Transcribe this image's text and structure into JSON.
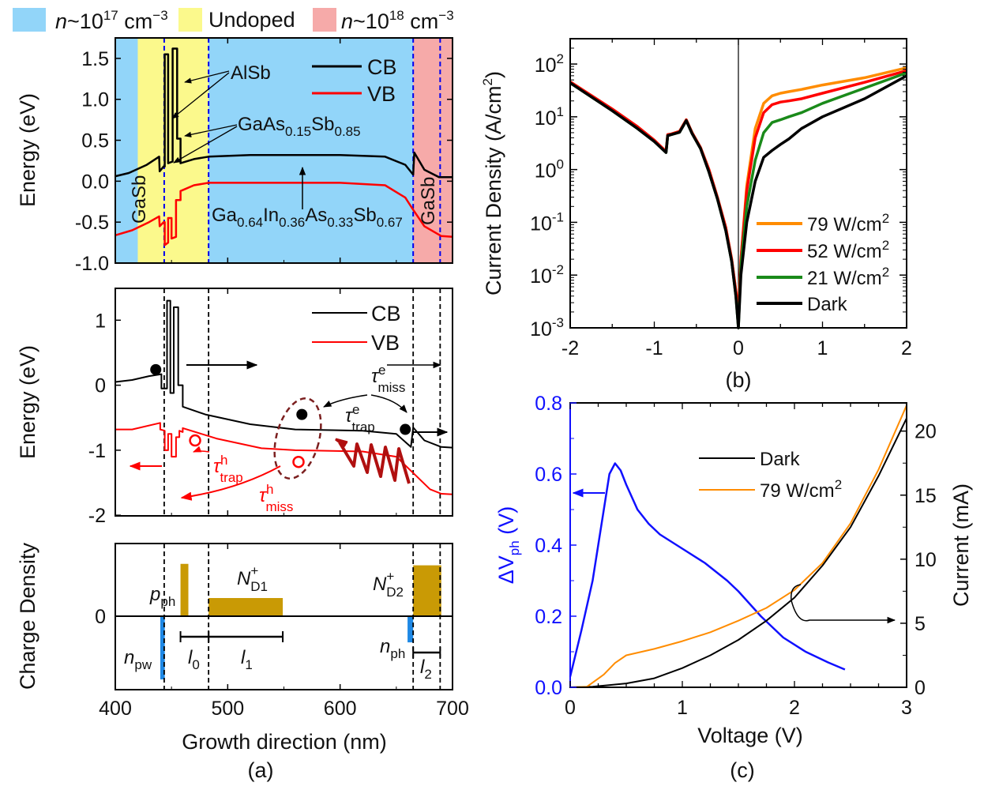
{
  "colors": {
    "blue_region": "#92d5f9",
    "yellow_region": "#fbf98c",
    "pink_region": "#f6aaa9",
    "cb": "#000000",
    "vb": "#ff0000",
    "donor": "#c99a05",
    "electron_charge": "#1e88e5",
    "dv_ph": "#1010ff",
    "orange": "#ff8c00",
    "green": "#1a8a1a",
    "ellipse": "#7b1f1f",
    "zigzag": "#b01010"
  },
  "top_legend": [
    {
      "n": "n",
      "pre": "~10",
      "exp": "17",
      "unit": " cm",
      "unit_exp": "−3"
    },
    {
      "label": "Undoped"
    },
    {
      "n": "n",
      "pre": "~10",
      "exp": "18",
      "unit": " cm",
      "unit_exp": "−3"
    }
  ],
  "panel_a": {
    "caption": "(a)",
    "xlabel": "Growth direction (nm)",
    "x_ticks": [
      "400",
      "500",
      "600",
      "700"
    ],
    "band_top": {
      "ylabel": "Energy (eV)",
      "y_ticks": [
        "1.5",
        "1.0",
        "0.5",
        "0.0",
        "-0.5",
        "-1.0"
      ],
      "legend": [
        "CB",
        "VB"
      ],
      "ann_alsb": "AlSb",
      "ann_gaassb": {
        "a": "GaAs",
        "s1": "0.15",
        "b": "Sb",
        "s2": "0.85"
      },
      "ann_gasb": "GaSb",
      "ann_quat": {
        "a": "Ga",
        "s1": "0.64",
        "b": "In",
        "s2": "0.36",
        "c": "As",
        "s3": "0.33",
        "d": "Sb",
        "s4": "0.67"
      }
    },
    "band_mid": {
      "ylabel": "Energy (eV)",
      "y_ticks": [
        "1",
        "0",
        "-1",
        "-2"
      ],
      "legend": [
        "CB",
        "VB"
      ],
      "tau": "τ",
      "tau_miss_e": {
        "sup": "e",
        "sub": "miss"
      },
      "tau_trap_e": {
        "sup": "e",
        "sub": "trap"
      },
      "tau_trap_h": {
        "sup": "h",
        "sub": "trap"
      },
      "tau_miss_h": {
        "sup": "h",
        "sub": "miss"
      }
    },
    "charge": {
      "ylabel": "Charge Density",
      "y_ticks": [
        "0"
      ],
      "p_ph": {
        "a": "p",
        "s": "ph"
      },
      "nd1": {
        "a": "N",
        "sup": "+",
        "s": "D1"
      },
      "nd2": {
        "a": "N",
        "sup": "+",
        "s": "D2"
      },
      "n_pw": {
        "a": "n",
        "s": "pw"
      },
      "n_ph": {
        "a": "n",
        "s": "ph"
      },
      "l0": {
        "a": "l",
        "s": "0"
      },
      "l1": {
        "a": "l",
        "s": "1"
      },
      "l2": {
        "a": "l",
        "s": "2"
      }
    }
  },
  "panel_b": {
    "caption": "(b)",
    "xlabel": "",
    "ylabel": "Current Density (A/cm",
    "ylabel_exp": "2",
    "ylabel_end": ")",
    "x_ticks": [
      "-2",
      "-1",
      "0",
      "1",
      "2"
    ],
    "y_ticks": [
      {
        "b": "10",
        "e": "2"
      },
      {
        "b": "10",
        "e": "1"
      },
      {
        "b": "10",
        "e": "0"
      },
      {
        "b": "10",
        "e": "-1"
      },
      {
        "b": "10",
        "e": "-2"
      },
      {
        "b": "10",
        "e": "-3"
      }
    ],
    "legend": [
      {
        "t": "79 W/cm",
        "e": "2"
      },
      {
        "t": "52 W/cm",
        "e": "2"
      },
      {
        "t": "21 W/cm",
        "e": "2"
      },
      {
        "t": "Dark",
        "e": ""
      }
    ]
  },
  "panel_c": {
    "caption": "(c)",
    "xlabel": "Voltage (V)",
    "ylabel_left": {
      "a": "ΔV",
      "s": "ph",
      "b": " (V)"
    },
    "ylabel_right": "Current (mA)",
    "x_ticks": [
      "0",
      "1",
      "2",
      "3"
    ],
    "y_left_ticks": [
      "0.0",
      "0.2",
      "0.4",
      "0.6",
      "0.8"
    ],
    "y_right_ticks": [
      "0",
      "5",
      "10",
      "15",
      "20"
    ],
    "legend": [
      {
        "t": "Dark",
        "e": ""
      },
      {
        "t": "79 W/cm",
        "e": "2"
      }
    ]
  },
  "chart_data": [
    {
      "type": "line",
      "panel": "a-top",
      "xlabel": "Growth direction (nm)",
      "ylabel": "Energy (eV)",
      "xlim": [
        400,
        700
      ],
      "ylim": [
        -1.0,
        1.75
      ],
      "regions": [
        {
          "from": 400,
          "to": 420,
          "doping": "n~1e17"
        },
        {
          "from": 420,
          "to": 483,
          "doping": "Undoped"
        },
        {
          "from": 483,
          "to": 665,
          "doping": "n~1e17"
        },
        {
          "from": 665,
          "to": 700,
          "doping": "n~1e18"
        }
      ],
      "dashed_lines": [
        443.5,
        483,
        665,
        689
      ],
      "series": [
        {
          "name": "CB",
          "points": [
            [
              400,
              0.06
            ],
            [
              412,
              0.1
            ],
            [
              428,
              0.2
            ],
            [
              439,
              0.3
            ],
            [
              439.5,
              0.12
            ],
            [
              443,
              0.18
            ],
            [
              444,
              0.18
            ],
            [
              444,
              1.55
            ],
            [
              447,
              1.55
            ],
            [
              447,
              0.22
            ],
            [
              451,
              0.24
            ],
            [
              451,
              1.62
            ],
            [
              455,
              1.62
            ],
            [
              455,
              0.52
            ],
            [
              458,
              0.52
            ],
            [
              458,
              0.22
            ],
            [
              470,
              0.27
            ],
            [
              483,
              0.3
            ],
            [
              520,
              0.32
            ],
            [
              600,
              0.32
            ],
            [
              640,
              0.3
            ],
            [
              658,
              0.2
            ],
            [
              665,
              0.08
            ],
            [
              666,
              0.35
            ],
            [
              675,
              0.14
            ],
            [
              688,
              0.05
            ],
            [
              700,
              0.05
            ]
          ]
        },
        {
          "name": "VB",
          "points": [
            [
              400,
              -0.66
            ],
            [
              415,
              -0.6
            ],
            [
              430,
              -0.5
            ],
            [
              439,
              -0.43
            ],
            [
              439.5,
              -0.55
            ],
            [
              443,
              -0.5
            ],
            [
              444,
              -0.5
            ],
            [
              444,
              -0.78
            ],
            [
              447,
              -0.75
            ],
            [
              447,
              -0.45
            ],
            [
              450,
              -0.45
            ],
            [
              450,
              -0.7
            ],
            [
              454,
              -0.68
            ],
            [
              454,
              -0.23
            ],
            [
              458,
              -0.23
            ],
            [
              458,
              -0.12
            ],
            [
              470,
              -0.05
            ],
            [
              483,
              -0.02
            ],
            [
              600,
              -0.02
            ],
            [
              640,
              -0.05
            ],
            [
              658,
              -0.2
            ],
            [
              665,
              -0.35
            ],
            [
              675,
              -0.55
            ],
            [
              690,
              -0.67
            ],
            [
              700,
              -0.68
            ]
          ]
        }
      ]
    },
    {
      "type": "line",
      "panel": "a-middle",
      "ylabel": "Energy (eV)",
      "xlim": [
        400,
        700
      ],
      "ylim": [
        -2.01,
        1.49
      ],
      "dashed_lines": [
        443.5,
        483,
        665,
        689
      ],
      "series": [
        {
          "name": "CB",
          "points": [
            [
              400,
              0.05
            ],
            [
              415,
              0.08
            ],
            [
              430,
              0.14
            ],
            [
              441,
              0.17
            ],
            [
              441,
              -0.05
            ],
            [
              446,
              -0.05
            ],
            [
              446,
              1.3
            ],
            [
              449,
              1.3
            ],
            [
              449,
              -0.12
            ],
            [
              452,
              -0.12
            ],
            [
              452,
              1.2
            ],
            [
              456,
              1.2
            ],
            [
              456,
              0.0
            ],
            [
              460,
              0.0
            ],
            [
              460,
              -0.33
            ],
            [
              480,
              -0.45
            ],
            [
              520,
              -0.6
            ],
            [
              560,
              -0.68
            ],
            [
              620,
              -0.7
            ],
            [
              650,
              -0.75
            ],
            [
              663,
              -0.95
            ],
            [
              665,
              -0.65
            ],
            [
              675,
              -0.85
            ],
            [
              690,
              -0.95
            ],
            [
              700,
              -0.96
            ]
          ]
        },
        {
          "name": "VB",
          "points": [
            [
              400,
              -0.68
            ],
            [
              415,
              -0.68
            ],
            [
              440,
              -0.58
            ],
            [
              440,
              -0.68
            ],
            [
              444,
              -0.7
            ],
            [
              444,
              -1.0
            ],
            [
              447,
              -1.0
            ],
            [
              447,
              -0.75
            ],
            [
              450,
              -0.75
            ],
            [
              450,
              -1.1
            ],
            [
              454,
              -1.1
            ],
            [
              454,
              -0.8
            ],
            [
              457,
              -0.8
            ],
            [
              457,
              -0.7
            ],
            [
              460,
              -0.72
            ],
            [
              460,
              -0.66
            ],
            [
              490,
              -0.82
            ],
            [
              530,
              -0.97
            ],
            [
              560,
              -1.0
            ],
            [
              620,
              -1.02
            ],
            [
              650,
              -1.1
            ],
            [
              665,
              -1.35
            ],
            [
              680,
              -1.6
            ],
            [
              690,
              -1.67
            ],
            [
              700,
              -1.68
            ]
          ]
        }
      ],
      "carriers": [
        {
          "kind": "electron",
          "x": 436,
          "y": 0.24
        },
        {
          "kind": "electron",
          "x": 566,
          "y": -0.45
        },
        {
          "kind": "electron",
          "x": 658,
          "y": -0.68
        },
        {
          "kind": "hole",
          "x": 471,
          "y": -0.85
        },
        {
          "kind": "hole",
          "x": 563,
          "y": -1.18
        }
      ]
    },
    {
      "type": "bar",
      "panel": "a-bottom",
      "ylabel": "Charge Density",
      "xlim": [
        400,
        700
      ],
      "ylim": [
        -1,
        1
      ],
      "bars": [
        {
          "label": "n_pw",
          "from": 440,
          "to": 444,
          "value": -0.87
        },
        {
          "label": "p_ph",
          "from": 458,
          "to": 465,
          "value": 0.72
        },
        {
          "label": "N_D1+",
          "from": 483,
          "to": 549,
          "value": 0.25
        },
        {
          "label": "n_ph",
          "from": 660,
          "to": 665,
          "value": -0.36
        },
        {
          "label": "N_D2+",
          "from": 665,
          "to": 690,
          "value": 0.7
        }
      ],
      "lengths": [
        {
          "label": "l0",
          "from": 458,
          "to": 483
        },
        {
          "label": "l1",
          "from": 483,
          "to": 549
        },
        {
          "label": "l2",
          "from": 665,
          "to": 689
        }
      ]
    },
    {
      "type": "line",
      "panel": "b",
      "xlabel": "",
      "ylabel": "Current Density (A/cm2)",
      "xlim": [
        -2,
        2
      ],
      "ylim": [
        0.001,
        300
      ],
      "yscale": "log",
      "legend": "lower-right",
      "x": [
        -2,
        -1.5,
        -1.2,
        -1,
        -0.86,
        -0.84,
        -0.8,
        -0.7,
        -0.62,
        -0.55,
        -0.45,
        -0.35,
        -0.25,
        -0.15,
        -0.08,
        -0.03,
        0,
        0.03,
        0.1,
        0.2,
        0.3,
        0.4,
        0.5,
        0.6,
        0.75,
        1,
        1.5,
        2
      ],
      "series": [
        {
          "name": "79 W/cm2",
          "values": [
            46,
            14,
            6.5,
            3.6,
            2.2,
            4.6,
            4.7,
            5.3,
            8.8,
            5,
            2.6,
            1.0,
            0.3,
            0.08,
            0.02,
            0.005,
            0.002,
            0.02,
            0.5,
            6,
            18,
            25,
            28,
            30,
            33,
            40,
            55,
            85
          ]
        },
        {
          "name": "52 W/cm2",
          "values": [
            46,
            14,
            6.5,
            3.6,
            2.2,
            4.6,
            4.7,
            5.3,
            8.8,
            5,
            2.6,
            1.0,
            0.3,
            0.08,
            0.02,
            0.005,
            0.002,
            0.02,
            0.4,
            4,
            12,
            17,
            19,
            20,
            22,
            28,
            45,
            75
          ]
        },
        {
          "name": "21 W/cm2",
          "values": [
            44,
            13,
            6,
            3.4,
            2.1,
            4.4,
            4.6,
            5.1,
            8.5,
            4.8,
            2.5,
            0.9,
            0.28,
            0.07,
            0.018,
            0.004,
            0.001,
            0.015,
            0.2,
            1.5,
            5,
            7.8,
            8.8,
            10,
            12,
            18,
            35,
            68
          ]
        },
        {
          "name": "Dark",
          "values": [
            44,
            13,
            6,
            3.4,
            2.1,
            4.4,
            4.6,
            5.1,
            8.5,
            4.8,
            2.5,
            0.9,
            0.28,
            0.07,
            0.018,
            0.004,
            0.001,
            0.01,
            0.1,
            0.6,
            1.7,
            2.3,
            3,
            3.8,
            6,
            10,
            22,
            60
          ]
        }
      ]
    },
    {
      "type": "line",
      "panel": "c",
      "xlabel": "Voltage (V)",
      "ylabel_left": "ΔVph (V)",
      "ylabel_right": "Current (mA)",
      "xlim": [
        0,
        3
      ],
      "ylim_left": [
        0,
        0.8
      ],
      "ylim_right": [
        0,
        22.2
      ],
      "legend": "top-center",
      "series": [
        {
          "name": "ΔVph",
          "axis": "left",
          "x": [
            0,
            0.1,
            0.2,
            0.3,
            0.35,
            0.4,
            0.45,
            0.5,
            0.6,
            0.7,
            0.8,
            1.0,
            1.2,
            1.4,
            1.5,
            1.7,
            1.9,
            2.1,
            2.3,
            2.45
          ],
          "values": [
            0.03,
            0.16,
            0.3,
            0.5,
            0.6,
            0.63,
            0.61,
            0.57,
            0.5,
            0.46,
            0.43,
            0.39,
            0.35,
            0.3,
            0.27,
            0.2,
            0.14,
            0.1,
            0.07,
            0.05
          ]
        },
        {
          "name": "Dark",
          "axis": "right",
          "x": [
            0,
            0.2,
            0.5,
            0.75,
            1,
            1.25,
            1.5,
            1.75,
            2,
            2.25,
            2.5,
            2.75,
            3
          ],
          "values": [
            0,
            0.05,
            0.3,
            0.7,
            1.5,
            2.5,
            3.7,
            5.2,
            7.0,
            9.5,
            12.5,
            16.5,
            21
          ]
        },
        {
          "name": "79 W/cm2",
          "axis": "right",
          "x": [
            0,
            0.15,
            0.3,
            0.4,
            0.5,
            0.75,
            1,
            1.25,
            1.5,
            1.75,
            2,
            2.25,
            2.5,
            2.75,
            3
          ],
          "values": [
            0,
            0.05,
            1.0,
            1.9,
            2.5,
            3.0,
            3.6,
            4.3,
            5.2,
            6.2,
            7.6,
            9.7,
            12.8,
            17,
            22
          ]
        }
      ]
    }
  ]
}
